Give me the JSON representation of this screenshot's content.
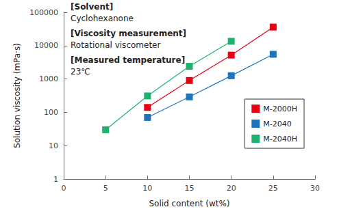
{
  "chart_data": {
    "type": "line",
    "x_label": "Solid content (wt%)",
    "y_label": "Solution viscosity (mPa·s)",
    "annotations": [
      {
        "heading": "[Solvent]",
        "text": "Cyclohexanone"
      },
      {
        "heading": "[Viscosity measurement]",
        "text": "Rotational viscometer"
      },
      {
        "heading": "[Measured temperature]",
        "text": "23℃"
      }
    ],
    "series": [
      {
        "name": "M-2000H",
        "color": "#e60012",
        "x": [
          10,
          15,
          20,
          25
        ],
        "values": [
          140,
          900,
          5200,
          36000
        ]
      },
      {
        "name": "M-2040",
        "color": "#1e73be",
        "x": [
          10,
          15,
          20,
          25
        ],
        "values": [
          70,
          290,
          1250,
          5500
        ]
      },
      {
        "name": "M-2040H",
        "color": "#1db36e",
        "x": [
          5,
          10,
          15,
          20
        ],
        "values": [
          30,
          310,
          2400,
          13500
        ]
      }
    ],
    "xlim": [
      0,
      30
    ],
    "xticks": [
      0,
      5,
      10,
      15,
      20,
      25,
      30
    ],
    "ylim": [
      1,
      100000
    ],
    "yticks": [
      1,
      10,
      100,
      1000,
      10000,
      100000
    ],
    "log": "y",
    "grid": false,
    "legend": "right",
    "marker": "square"
  }
}
